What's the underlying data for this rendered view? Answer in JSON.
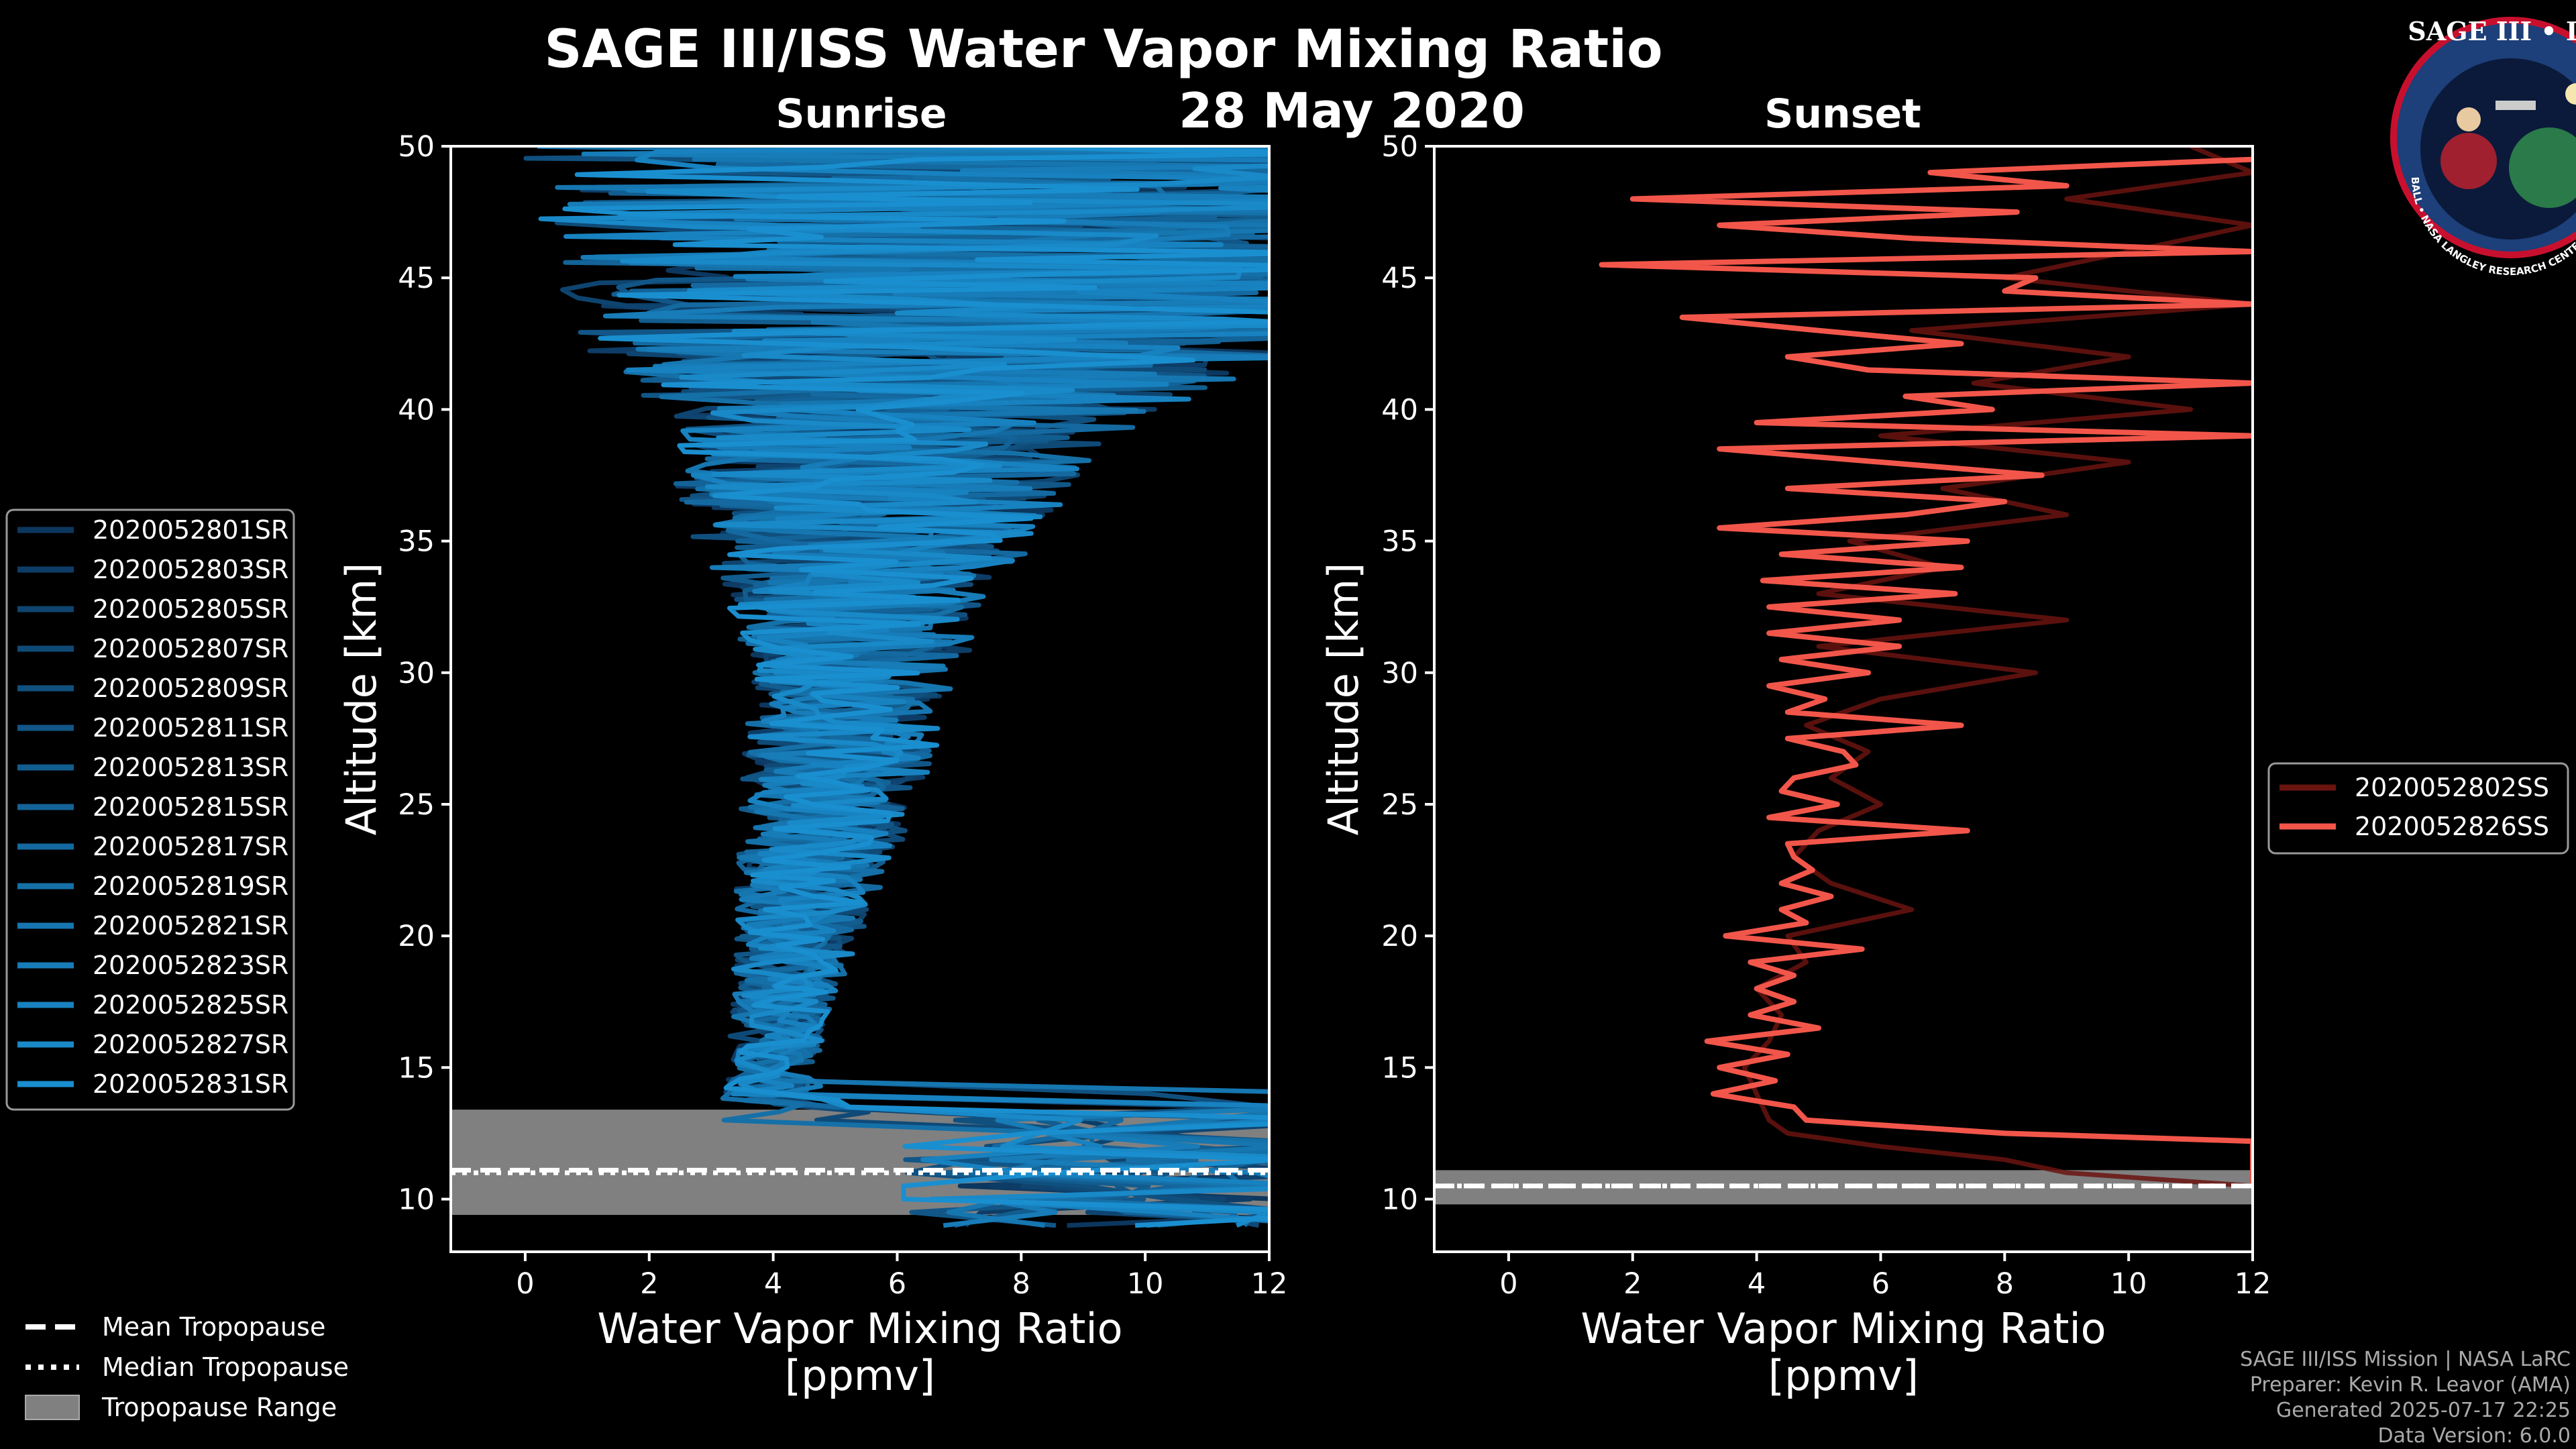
{
  "title": "SAGE III/ISS Water Vapor Mixing Ratio",
  "date": "28 May 2020",
  "colors": {
    "sunrise": "#1a8fd0",
    "sunset": "#f2564a",
    "tropo": "#808080",
    "background": "#000000"
  },
  "chart_data": [
    {
      "type": "line",
      "panel": "left",
      "subtitle": "Sunrise",
      "xlabel": "Water Vapor Mixing Ratio",
      "xlabel_units": "[ppmv]",
      "ylabel": "Altitude [km]",
      "xlim": [
        -1.2,
        12
      ],
      "ylim": [
        8,
        50
      ],
      "xticks": [
        "0",
        "2",
        "4",
        "6",
        "8",
        "10",
        "12"
      ],
      "yticks": [
        "10",
        "15",
        "20",
        "25",
        "30",
        "35",
        "40",
        "45",
        "50"
      ],
      "tropopause": {
        "mean_km": 11.1,
        "median_km": 11.0,
        "range_km": [
          9.4,
          13.4
        ]
      },
      "series": [
        {
          "name": "2020052801SR",
          "seed": 1
        },
        {
          "name": "2020052803SR",
          "seed": 2
        },
        {
          "name": "2020052805SR",
          "seed": 3
        },
        {
          "name": "2020052807SR",
          "seed": 4
        },
        {
          "name": "2020052809SR",
          "seed": 5
        },
        {
          "name": "2020052811SR",
          "seed": 6
        },
        {
          "name": "2020052813SR",
          "seed": 7
        },
        {
          "name": "2020052815SR",
          "seed": 8
        },
        {
          "name": "2020052817SR",
          "seed": 9
        },
        {
          "name": "2020052819SR",
          "seed": 10
        },
        {
          "name": "2020052821SR",
          "seed": 11
        },
        {
          "name": "2020052823SR",
          "seed": 12
        },
        {
          "name": "2020052825SR",
          "seed": 13
        },
        {
          "name": "2020052827SR",
          "seed": 14
        },
        {
          "name": "2020052831SR",
          "seed": 15
        }
      ],
      "profile_envelope": {
        "altitudes_km": [
          9,
          11,
          13,
          14,
          15,
          17,
          20,
          23,
          26,
          30,
          33,
          35,
          38,
          40,
          42,
          45,
          48,
          50
        ],
        "center_ppmv": [
          10,
          7,
          4.6,
          4.0,
          4.0,
          4.1,
          4.4,
          4.7,
          5.0,
          5.3,
          5.4,
          5.5,
          5.7,
          6.2,
          7.0,
          7.5,
          8.0,
          8.0
        ],
        "spread_ppmv": [
          3,
          3,
          1.5,
          0.8,
          0.7,
          0.8,
          1.0,
          1.3,
          1.5,
          1.7,
          2.2,
          2.8,
          3.4,
          4.0,
          6.0,
          7.0,
          8.0,
          8.0
        ]
      }
    },
    {
      "type": "line",
      "panel": "right",
      "subtitle": "Sunset",
      "xlabel": "Water Vapor Mixing Ratio",
      "xlabel_units": "[ppmv]",
      "ylabel": "Altitude [km]",
      "xlim": [
        -1.2,
        12
      ],
      "ylim": [
        8,
        50
      ],
      "xticks": [
        "0",
        "2",
        "4",
        "6",
        "8",
        "10",
        "12"
      ],
      "yticks": [
        "10",
        "15",
        "20",
        "25",
        "30",
        "35",
        "40",
        "45",
        "50"
      ],
      "tropopause": {
        "mean_km": 10.5,
        "median_km": 10.5,
        "range_km": [
          9.8,
          11.1
        ]
      },
      "series": [
        {
          "name": "2020052802SS",
          "alt": [
            10.5,
            11,
            11.5,
            12,
            12.5,
            13,
            14,
            15,
            16,
            17,
            18,
            19,
            20,
            21,
            22,
            23,
            24,
            25,
            26,
            27,
            28,
            29,
            30,
            31,
            32,
            33,
            34,
            35,
            36,
            37,
            38,
            39,
            40,
            41,
            42,
            43,
            44,
            45,
            46,
            47,
            48,
            49,
            50
          ],
          "val": [
            12,
            9,
            8,
            6,
            4.5,
            4.2,
            4.0,
            3.8,
            4.2,
            4.4,
            4.0,
            4.8,
            4.5,
            6.5,
            5.2,
            4.6,
            5.0,
            6.0,
            5.2,
            5.8,
            4.8,
            6.0,
            8.5,
            5.0,
            9.0,
            5.0,
            7.0,
            5.5,
            9.0,
            7.0,
            10.0,
            6.0,
            11.0,
            7.5,
            10.0,
            6.5,
            12.0,
            8.0,
            10.0,
            12.0,
            9.0,
            12.0,
            11.0
          ]
        },
        {
          "name": "2020052826SS",
          "alt": [
            10.5,
            11,
            12,
            12.2,
            12.5,
            13,
            13.5,
            14,
            14.5,
            15,
            15.5,
            16,
            16.5,
            17,
            17.5,
            18,
            18.5,
            19,
            19.5,
            20,
            20.5,
            21,
            21.5,
            22,
            22.5,
            23,
            23.5,
            24,
            24.5,
            25,
            25.5,
            26,
            26.5,
            27,
            27.5,
            28,
            28.5,
            29,
            29.5,
            30,
            30.5,
            31,
            31.5,
            32,
            32.5,
            33,
            33.5,
            34,
            34.5,
            35,
            35.5,
            36,
            36.5,
            37,
            37.5,
            38,
            38.5,
            39,
            39.5,
            40,
            40.5,
            41,
            41.5,
            42,
            42.5,
            43,
            43.5,
            44,
            44.5,
            45,
            45.5,
            46,
            46.5,
            47,
            47.5,
            48,
            48.5,
            49,
            49.5
          ],
          "val": [
            12,
            12,
            12,
            12,
            8.0,
            4.8,
            4.6,
            3.3,
            4.3,
            3.4,
            4.5,
            3.2,
            5.0,
            3.9,
            4.6,
            4.0,
            4.6,
            3.9,
            5.7,
            3.5,
            4.8,
            4.4,
            5.2,
            4.4,
            4.9,
            4.6,
            4.5,
            7.4,
            4.2,
            5.3,
            4.4,
            4.6,
            5.6,
            5.4,
            4.5,
            7.3,
            4.5,
            5.1,
            4.2,
            5.8,
            4.4,
            6.3,
            4.2,
            6.3,
            4.2,
            7.2,
            4.1,
            7.3,
            4.4,
            7.4,
            3.4,
            6.4,
            8.0,
            4.5,
            8.6,
            6.0,
            3.4,
            12.0,
            4.0,
            7.8,
            6.4,
            12.0,
            5.8,
            4.5,
            7.3,
            5.0,
            2.8,
            12.0,
            8.0,
            8.5,
            1.5,
            12.0,
            6.5,
            3.4,
            8.2,
            2.0,
            9.0,
            6.8,
            12.0
          ]
        }
      ]
    }
  ],
  "left_legend": [
    "2020052801SR",
    "2020052803SR",
    "2020052805SR",
    "2020052807SR",
    "2020052809SR",
    "2020052811SR",
    "2020052813SR",
    "2020052815SR",
    "2020052817SR",
    "2020052819SR",
    "2020052821SR",
    "2020052823SR",
    "2020052825SR",
    "2020052827SR",
    "2020052831SR"
  ],
  "right_legend": [
    "2020052802SS",
    "2020052826SS"
  ],
  "tropo_legend": {
    "mean": "Mean Tropopause",
    "median": "Median Tropopause",
    "range": "Tropopause Range"
  },
  "credits": [
    "SAGE III/ISS Mission | NASA LaRC",
    "Preparer: Kevin R. Leavor (AMA)",
    "Generated 2025-07-17 22:25",
    "Data Version: 6.0.0"
  ],
  "logo": {
    "top": "SAGE III • ISS",
    "ring": "BALL • NASA LANGLEY RESEARCH CENTER • TAS • ESA"
  }
}
